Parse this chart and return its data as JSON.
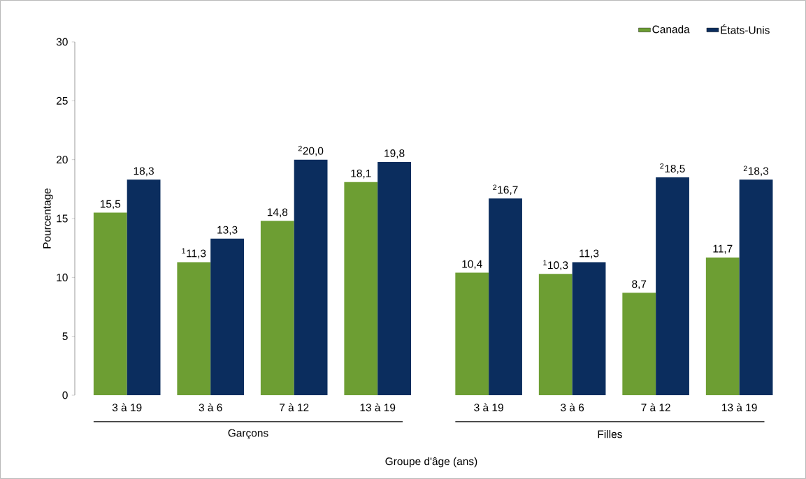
{
  "chart_data": {
    "type": "bar",
    "categories": [
      "3 à 19",
      "3 à 6",
      "7 à 12",
      "13 à 19",
      "3 à 19",
      "3 à 6",
      "7 à 12",
      "13 à 19"
    ],
    "series": [
      {
        "name": "Canada",
        "color": "#6d9e33",
        "values": [
          15.5,
          11.3,
          14.8,
          18.1,
          10.4,
          10.3,
          8.7,
          11.7
        ],
        "value_labels": [
          "15,5",
          "$^{1}$11,3",
          "14,8",
          "18,1",
          "10,4",
          "$^{1}$10,3",
          "8,7",
          "11,7"
        ]
      },
      {
        "name": "États-Unis",
        "color": "#0b2d5e",
        "values": [
          18.3,
          13.3,
          20.0,
          19.8,
          16.7,
          11.3,
          18.5,
          18.3
        ],
        "value_labels": [
          "18,3",
          "13,3",
          "$^{2}$20,0",
          "19,8",
          "$^{2}$16,7",
          "11,3",
          "$^{2}$18,5",
          "$^{2}$18,3"
        ]
      }
    ],
    "ylim": [
      0,
      30
    ],
    "yticks": [
      0,
      5,
      10,
      15,
      20,
      25,
      30
    ],
    "ylabel": "Pourcentage",
    "xlabel": "Groupe d'âge (ans)",
    "annotations": [
      "Garçons",
      "Filles"
    ],
    "legend": "top right",
    "grid": false
  }
}
